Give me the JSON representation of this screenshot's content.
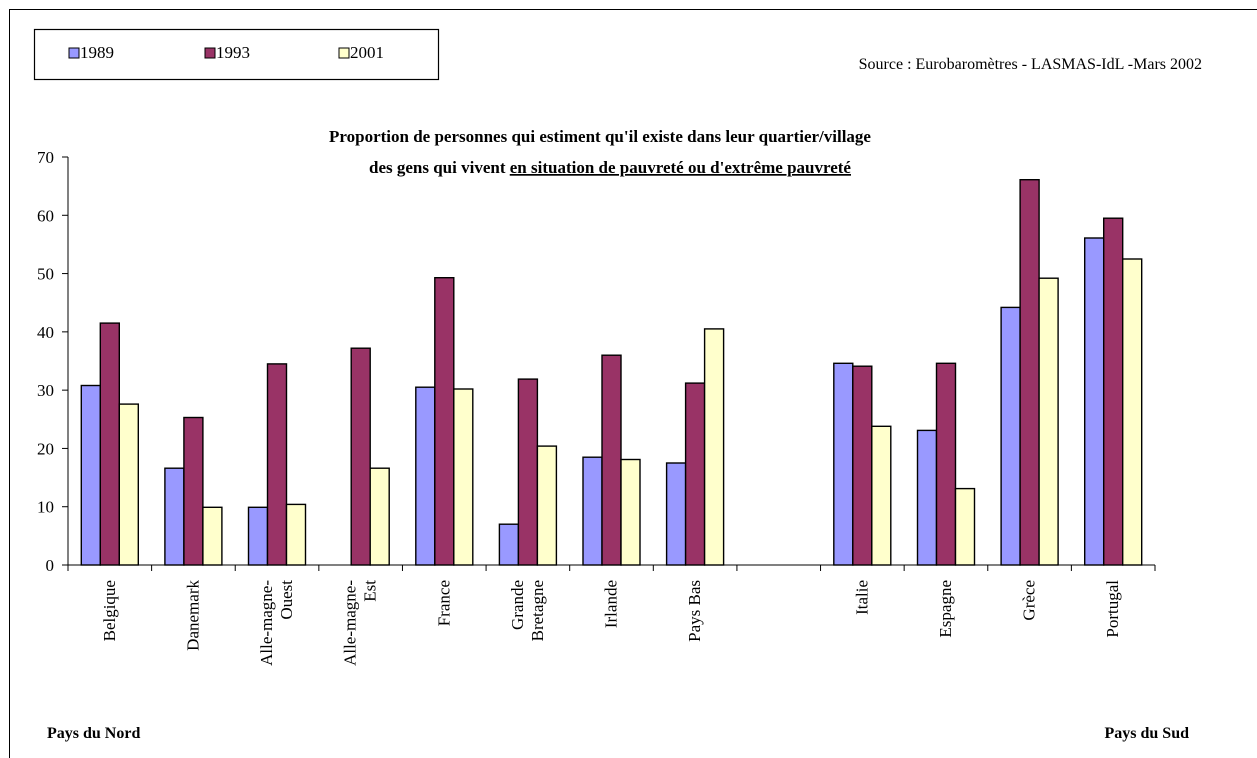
{
  "chart_data": {
    "type": "bar",
    "title_line1": "Proportion de personnes qui estiment qu'il existe dans leur quartier/village",
    "title_line2_prefix": "des gens qui vivent ",
    "title_line2_underlined": "en situation de pauvreté ou d'extrême pauvreté",
    "source": "Source : Eurobaromètres - LASMAS-IdL -Mars 2002",
    "group_left": "Pays du Nord",
    "group_right": "Pays du Sud",
    "categories": [
      [
        "Belgique"
      ],
      [
        "Danemark"
      ],
      [
        "Alle-magne-",
        "Ouest"
      ],
      [
        "Alle-magne-",
        "Est"
      ],
      [
        "France"
      ],
      [
        "Grande",
        "Bretagne"
      ],
      [
        "Irlande"
      ],
      [
        "Pays Bas"
      ],
      [
        ""
      ],
      [
        "Italie"
      ],
      [
        "Espagne"
      ],
      [
        "Grèce"
      ],
      [
        "Portugal"
      ]
    ],
    "series": [
      {
        "name": "1989",
        "color": "#9999ff",
        "values": [
          30.8,
          16.6,
          9.9,
          null,
          30.5,
          7.0,
          18.5,
          17.5,
          null,
          34.6,
          23.1,
          44.2,
          56.1
        ]
      },
      {
        "name": "1993",
        "color": "#993366",
        "values": [
          41.5,
          25.3,
          34.5,
          37.2,
          49.3,
          31.9,
          36.0,
          31.2,
          null,
          34.1,
          34.6,
          66.1,
          59.5
        ]
      },
      {
        "name": "2001",
        "color": "#ffffcc",
        "values": [
          27.6,
          9.9,
          10.4,
          16.6,
          30.2,
          20.4,
          18.1,
          40.5,
          null,
          23.8,
          13.1,
          49.2,
          52.5
        ]
      }
    ],
    "ylim": [
      0,
      70
    ],
    "yticks": [
      0,
      10,
      20,
      30,
      40,
      50,
      60,
      70
    ],
    "legend_position": "top-left",
    "grid": false
  }
}
